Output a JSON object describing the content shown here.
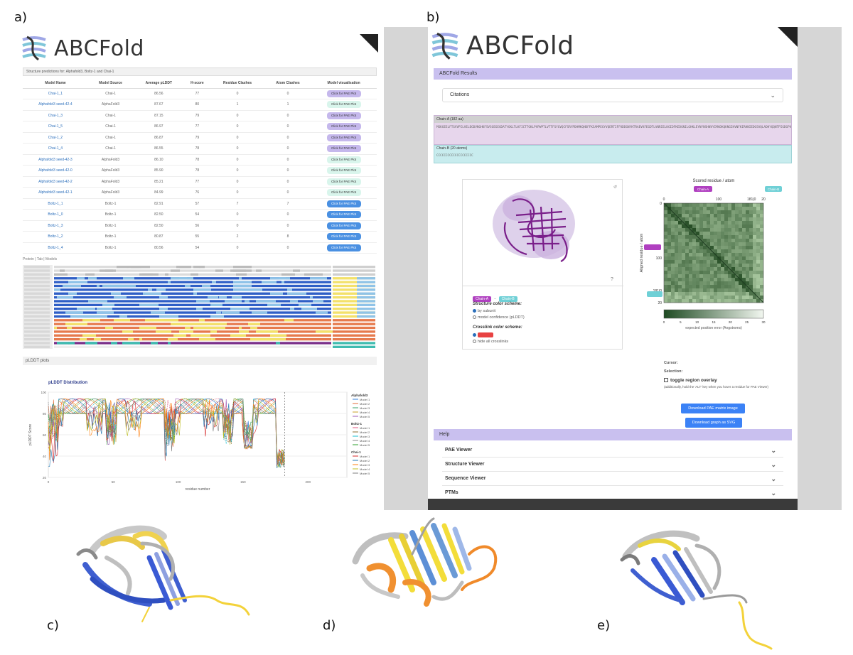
{
  "labels": {
    "a": "a)",
    "b": "b)",
    "c": "c)",
    "d": "d)",
    "e": "e)"
  },
  "brand": "ABCFold",
  "panel_a": {
    "summary_text": "Structure predictions for: Alphafold3, Boltz-1 and Chai-1",
    "columns": [
      "Model Name",
      "Model Source",
      "Average pLDDT",
      "H-score",
      "Residue Clashes",
      "Atom Clashes",
      "Model visualisation"
    ],
    "rows": [
      {
        "name": "Chai-1_1",
        "source": "Chai-1",
        "plddt": "86.56",
        "hscore": "77",
        "res": "0",
        "atom": "0",
        "btn": "Click for PAE Plot",
        "kind": "af3"
      },
      {
        "name": "Alphafold3 seed-42-4",
        "source": "AlphaFold3",
        "plddt": "87.67",
        "hscore": "80",
        "res": "1",
        "atom": "1",
        "btn": "Click for PAE Plot",
        "kind": "af2"
      },
      {
        "name": "Chai-1_3",
        "source": "Chai-1",
        "plddt": "87.15",
        "hscore": "79",
        "res": "0",
        "atom": "0",
        "btn": "Click for PAE Plot",
        "kind": "af3"
      },
      {
        "name": "Chai-1_5",
        "source": "Chai-1",
        "plddt": "86.97",
        "hscore": "77",
        "res": "0",
        "atom": "0",
        "btn": "Click for PAE Plot",
        "kind": "af3"
      },
      {
        "name": "Chai-1_2",
        "source": "Chai-1",
        "plddt": "86.87",
        "hscore": "79",
        "res": "0",
        "atom": "0",
        "btn": "Click for PAE Plot",
        "kind": "af3"
      },
      {
        "name": "Chai-1_4",
        "source": "Chai-1",
        "plddt": "86.55",
        "hscore": "78",
        "res": "0",
        "atom": "0",
        "btn": "Click for PAE Plot",
        "kind": "af3"
      },
      {
        "name": "Alphafold3 seed-42-3",
        "source": "AlphaFold3",
        "plddt": "86.10",
        "hscore": "78",
        "res": "0",
        "atom": "0",
        "btn": "Click for PAE Plot",
        "kind": "af2"
      },
      {
        "name": "Alphafold3 seed-42-0",
        "source": "AlphaFold3",
        "plddt": "85.90",
        "hscore": "78",
        "res": "0",
        "atom": "0",
        "btn": "Click for PAE Plot",
        "kind": "af2"
      },
      {
        "name": "Alphafold3 seed-42-2",
        "source": "AlphaFold3",
        "plddt": "85.21",
        "hscore": "77",
        "res": "0",
        "atom": "0",
        "btn": "Click for PAE Plot",
        "kind": "af2"
      },
      {
        "name": "Alphafold3 seed-42-1",
        "source": "AlphaFold3",
        "plddt": "84.99",
        "hscore": "76",
        "res": "0",
        "atom": "0",
        "btn": "Click for PAE Plot",
        "kind": "af2"
      },
      {
        "name": "Boltz-1_1",
        "source": "Boltz-1",
        "plddt": "82.91",
        "hscore": "57",
        "res": "7",
        "atom": "7",
        "btn": "Click for PAE Plot",
        "kind": "boltz"
      },
      {
        "name": "Boltz-1_0",
        "source": "Boltz-1",
        "plddt": "82.50",
        "hscore": "54",
        "res": "0",
        "atom": "0",
        "btn": "Click for PAE Plot",
        "kind": "boltz"
      },
      {
        "name": "Boltz-1_3",
        "source": "Boltz-1",
        "plddt": "82.50",
        "hscore": "56",
        "res": "0",
        "atom": "0",
        "btn": "Click for PAE Plot",
        "kind": "boltz"
      },
      {
        "name": "Boltz-1_2",
        "source": "Boltz-1",
        "plddt": "80.87",
        "hscore": "55",
        "res": "2",
        "atom": "8",
        "btn": "Click for PAE Plot",
        "kind": "boltz"
      },
      {
        "name": "Boltz-1_4",
        "source": "Boltz-1",
        "plddt": "80.56",
        "hscore": "54",
        "res": "0",
        "atom": "0",
        "btn": "Click for PAE Plot",
        "kind": "boltz"
      }
    ],
    "seq_header": "Protein  |  Tab  |  Models",
    "plddt_section": "pLDDT plots",
    "plddt_title": "pLDDT Distribution",
    "plddt_xlabel": "residue number",
    "plddt_ylabel": "pLDDT Score",
    "legend_groups": [
      {
        "name": "Alphafold3",
        "items": [
          "Model 1",
          "Model 2",
          "Model 3",
          "Model 4",
          "Model 5"
        ]
      },
      {
        "name": "Boltz-1",
        "items": [
          "Model 1",
          "Model 2",
          "Model 3",
          "Model 4",
          "Model 5"
        ]
      },
      {
        "name": "Chai-1",
        "items": [
          "Model 1",
          "Model 2",
          "Model 3",
          "Model 4",
          "Model 5"
        ]
      }
    ],
    "colors": {
      "blue": "#2f5fc6",
      "light_blue": "#8fc3e8",
      "yellow": "#f3e16b",
      "orange": "#e67a4d",
      "purple": "#7a2f8a",
      "teal": "#3fbcb0"
    }
  },
  "panel_b": {
    "results_bar": "ABCFold Results",
    "citations": "Citations",
    "chain_a_header": "Chain-A (182 aa)",
    "chain_a_seq": "MSKGEELFTGVVPILVELDGDVNGHKFSVSGEGEGDATYGKLTLKFICTTGKLPVPWPTLVTTFSYGVQCFSRYPDHMKQHDFFKSAMPEGYVQERTIFFKDDGNYKTRAEVKFEGDTLVNRIELKGIDFKEDGNILGHKLEYNYNSHNVYIMADKQKNGIKVNFKIRHNIEDGSVQLADHYQQNTPIGDGPVLLPDNHYLSTQSALSKDPNEKRDHMVLLEFVTAAGITHGMDELYK",
    "chain_b_header": "Chain-B (20 atoms)",
    "chain_b_seq": "CCCCCCCCCCCCCCCCCCCC",
    "chip_a": "Chain-A",
    "chip_b": "Chain-B",
    "structure_scheme": "Structure color scheme:",
    "opt_subunit": "by subunit",
    "opt_confidence": "model confidence (pLDDT)",
    "crosslink_scheme": "Crosslink color scheme:",
    "opt_hide": "hide all crosslinks",
    "pae_title": "Scored residue / atom",
    "pae_ylabel": "Aligned residue / atom",
    "pae_xlabel": "expected position error (Angstroms)",
    "pae_ticks_top": [
      "0",
      "100",
      "181|0",
      "20"
    ],
    "pae_ticks_left": [
      "0",
      "100",
      "181|0",
      "20"
    ],
    "scale_ticks": [
      "0",
      "5",
      "10",
      "15",
      "20",
      "25",
      "30"
    ],
    "status_text": "Cursor:",
    "selection_text": "Selection:",
    "toggle": "toggle region overlay",
    "toggle_hint": "(additionally, hold the 'ALT' key when you hover a residue for PAE Viewer)",
    "btn_download_matrix": "Download PAE matrix image",
    "btn_download_svg": "Download graph as SVG",
    "help": "Help",
    "help_items": [
      "PAE Viewer",
      "Structure Viewer",
      "Sequence Viewer",
      "PTMs"
    ]
  }
}
